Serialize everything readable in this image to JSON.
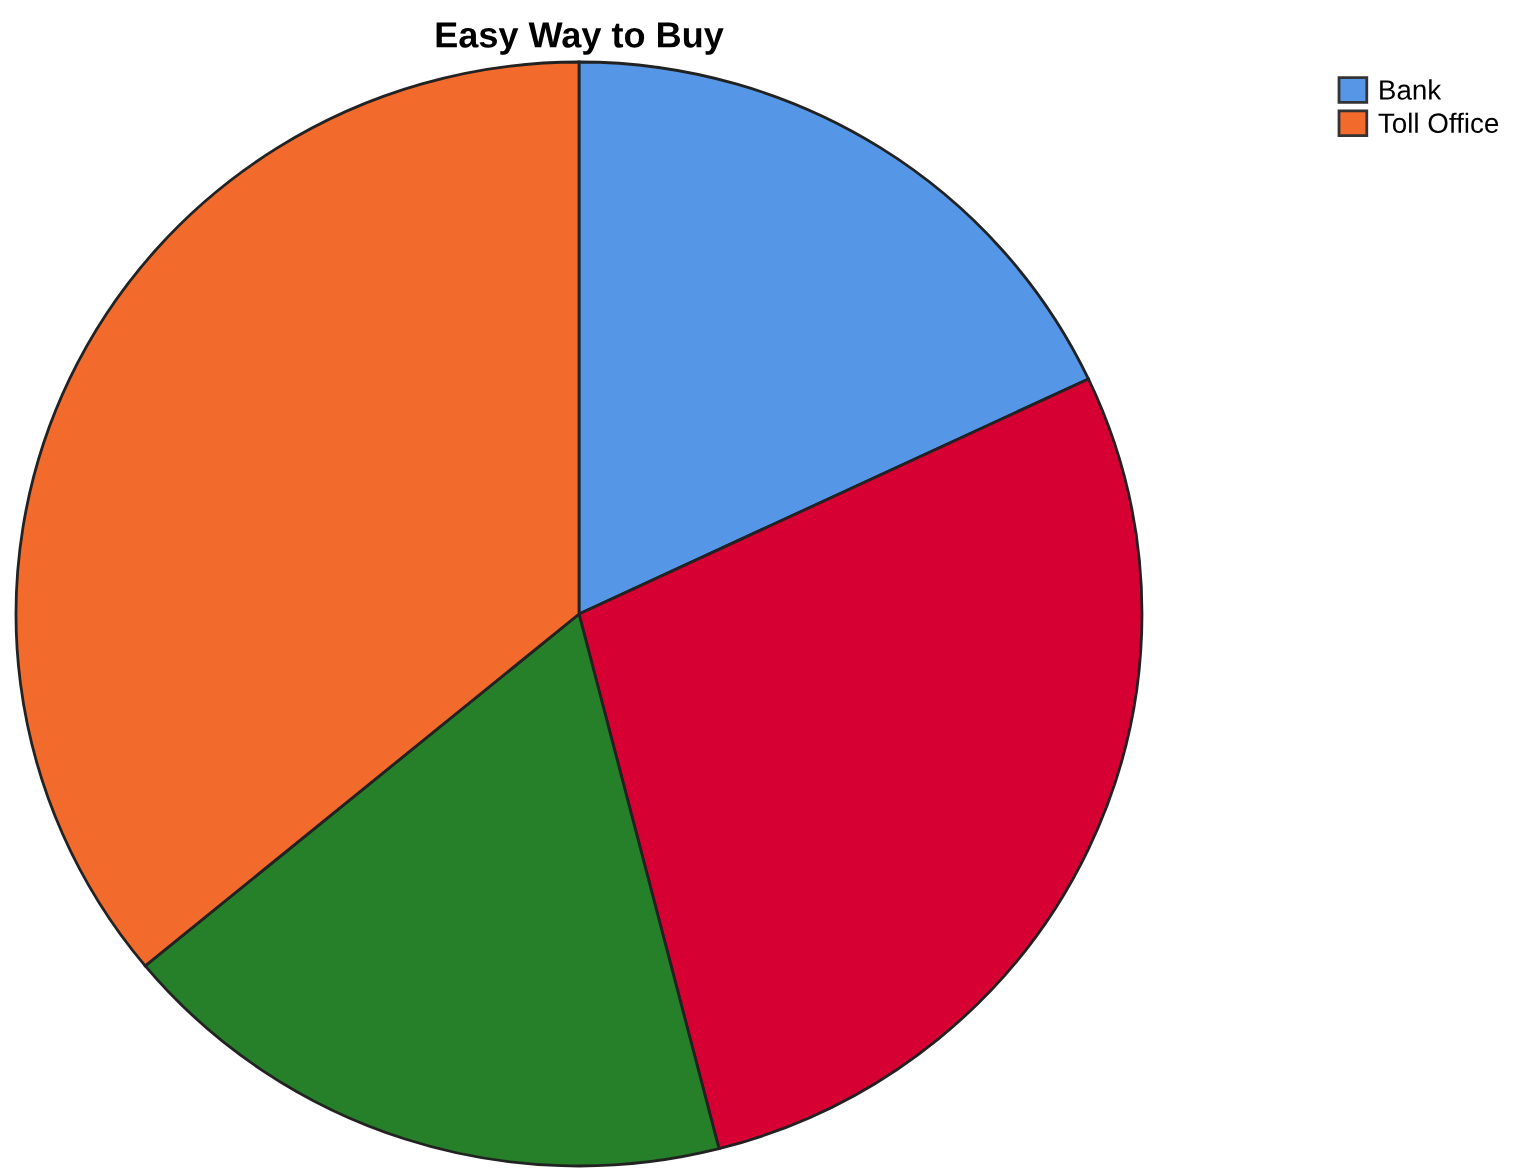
{
  "chart_data": {
    "type": "pie",
    "title": "Easy Way to Buy",
    "categories": [
      "Bank",
      null,
      null,
      "Toll Office"
    ],
    "values": [
      18,
      28,
      18,
      36
    ],
    "colors": [
      "#5596e6",
      "#d60033",
      "#26802a",
      "#f26a2c"
    ],
    "legend": "top right"
  }
}
